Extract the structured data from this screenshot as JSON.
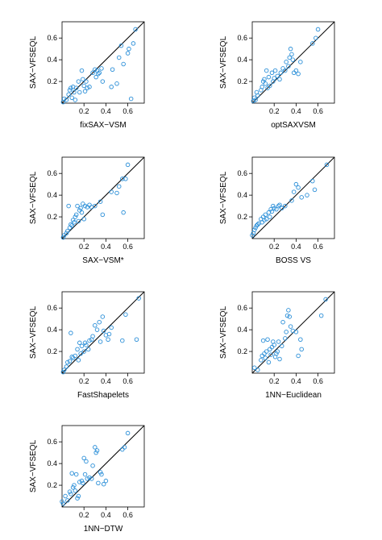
{
  "chart_data": [
    {
      "type": "scatter",
      "xlabel": "fixSAX−VSM",
      "ylabel": "SAX−VFSEQL",
      "xlim": [
        0,
        0.75
      ],
      "ylim": [
        0,
        0.75
      ],
      "xticks": [
        "0.2",
        "0.4",
        "0.6"
      ],
      "yticks": [
        "0.2",
        "0.4",
        "0.6"
      ],
      "reference_line": "y=x",
      "points": [
        [
          0.01,
          0.01
        ],
        [
          0.02,
          0.04
        ],
        [
          0.04,
          0.03
        ],
        [
          0.06,
          0.08
        ],
        [
          0.07,
          0.12
        ],
        [
          0.08,
          0.14
        ],
        [
          0.09,
          0.05
        ],
        [
          0.1,
          0.15
        ],
        [
          0.11,
          0.1
        ],
        [
          0.12,
          0.03
        ],
        [
          0.13,
          0.14
        ],
        [
          0.15,
          0.2
        ],
        [
          0.16,
          0.1
        ],
        [
          0.18,
          0.3
        ],
        [
          0.19,
          0.22
        ],
        [
          0.2,
          0.16
        ],
        [
          0.21,
          0.11
        ],
        [
          0.22,
          0.2
        ],
        [
          0.23,
          0.14
        ],
        [
          0.25,
          0.15
        ],
        [
          0.28,
          0.28
        ],
        [
          0.3,
          0.31
        ],
        [
          0.31,
          0.24
        ],
        [
          0.32,
          0.3
        ],
        [
          0.33,
          0.27
        ],
        [
          0.34,
          0.28
        ],
        [
          0.36,
          0.32
        ],
        [
          0.37,
          0.2
        ],
        [
          0.45,
          0.15
        ],
        [
          0.46,
          0.31
        ],
        [
          0.5,
          0.18
        ],
        [
          0.52,
          0.42
        ],
        [
          0.54,
          0.53
        ],
        [
          0.56,
          0.36
        ],
        [
          0.6,
          0.46
        ],
        [
          0.61,
          0.5
        ],
        [
          0.63,
          0.04
        ],
        [
          0.65,
          0.55
        ],
        [
          0.67,
          0.68
        ]
      ]
    },
    {
      "type": "scatter",
      "xlabel": "optSAXVSM",
      "ylabel": "SAX−VFSEQL",
      "xlim": [
        0,
        0.75
      ],
      "ylim": [
        0,
        0.75
      ],
      "xticks": [
        "0.2",
        "0.4",
        "0.6"
      ],
      "yticks": [
        "0.2",
        "0.4",
        "0.6"
      ],
      "reference_line": "y=x",
      "points": [
        [
          0.01,
          0.02
        ],
        [
          0.02,
          0.05
        ],
        [
          0.03,
          0.03
        ],
        [
          0.04,
          0.1
        ],
        [
          0.05,
          0.07
        ],
        [
          0.08,
          0.12
        ],
        [
          0.09,
          0.15
        ],
        [
          0.1,
          0.2
        ],
        [
          0.11,
          0.22
        ],
        [
          0.12,
          0.18
        ],
        [
          0.13,
          0.3
        ],
        [
          0.14,
          0.14
        ],
        [
          0.15,
          0.24
        ],
        [
          0.16,
          0.16
        ],
        [
          0.18,
          0.28
        ],
        [
          0.19,
          0.2
        ],
        [
          0.2,
          0.23
        ],
        [
          0.21,
          0.3
        ],
        [
          0.23,
          0.25
        ],
        [
          0.25,
          0.22
        ],
        [
          0.26,
          0.28
        ],
        [
          0.28,
          0.32
        ],
        [
          0.3,
          0.3
        ],
        [
          0.31,
          0.38
        ],
        [
          0.33,
          0.34
        ],
        [
          0.34,
          0.42
        ],
        [
          0.35,
          0.5
        ],
        [
          0.36,
          0.45
        ],
        [
          0.37,
          0.4
        ],
        [
          0.38,
          0.28
        ],
        [
          0.4,
          0.3
        ],
        [
          0.42,
          0.27
        ],
        [
          0.44,
          0.38
        ],
        [
          0.55,
          0.55
        ],
        [
          0.58,
          0.6
        ],
        [
          0.6,
          0.68
        ]
      ]
    },
    {
      "type": "scatter",
      "xlabel": "SAX−VSM*",
      "ylabel": "SAX−VFSEQL",
      "xlim": [
        0,
        0.75
      ],
      "ylim": [
        0,
        0.75
      ],
      "xticks": [
        "0.2",
        "0.4",
        "0.6"
      ],
      "yticks": [
        "0.2",
        "0.4",
        "0.6"
      ],
      "reference_line": "y=x",
      "points": [
        [
          0.01,
          0.01
        ],
        [
          0.02,
          0.03
        ],
        [
          0.04,
          0.05
        ],
        [
          0.05,
          0.07
        ],
        [
          0.06,
          0.3
        ],
        [
          0.07,
          0.1
        ],
        [
          0.08,
          0.13
        ],
        [
          0.09,
          0.12
        ],
        [
          0.1,
          0.17
        ],
        [
          0.11,
          0.15
        ],
        [
          0.12,
          0.2
        ],
        [
          0.13,
          0.22
        ],
        [
          0.14,
          0.3
        ],
        [
          0.15,
          0.16
        ],
        [
          0.16,
          0.26
        ],
        [
          0.17,
          0.28
        ],
        [
          0.18,
          0.24
        ],
        [
          0.19,
          0.32
        ],
        [
          0.2,
          0.18
        ],
        [
          0.21,
          0.3
        ],
        [
          0.23,
          0.29
        ],
        [
          0.25,
          0.31
        ],
        [
          0.27,
          0.29
        ],
        [
          0.3,
          0.3
        ],
        [
          0.35,
          0.34
        ],
        [
          0.37,
          0.22
        ],
        [
          0.45,
          0.43
        ],
        [
          0.5,
          0.42
        ],
        [
          0.52,
          0.48
        ],
        [
          0.55,
          0.55
        ],
        [
          0.56,
          0.24
        ],
        [
          0.58,
          0.55
        ],
        [
          0.6,
          0.68
        ]
      ]
    },
    {
      "type": "scatter",
      "xlabel": "BOSS VS",
      "ylabel": "SAX−VFSEQL",
      "xlim": [
        0,
        0.75
      ],
      "ylim": [
        0,
        0.75
      ],
      "xticks": [
        "0.2",
        "0.4",
        "0.6"
      ],
      "yticks": [
        "0.2",
        "0.4",
        "0.6"
      ],
      "reference_line": "y=x",
      "points": [
        [
          0.0,
          0.03
        ],
        [
          0.01,
          0.05
        ],
        [
          0.02,
          0.08
        ],
        [
          0.03,
          0.1
        ],
        [
          0.04,
          0.12
        ],
        [
          0.05,
          0.13
        ],
        [
          0.06,
          0.14
        ],
        [
          0.08,
          0.18
        ],
        [
          0.09,
          0.15
        ],
        [
          0.1,
          0.2
        ],
        [
          0.11,
          0.17
        ],
        [
          0.12,
          0.22
        ],
        [
          0.13,
          0.18
        ],
        [
          0.15,
          0.24
        ],
        [
          0.16,
          0.2
        ],
        [
          0.17,
          0.27
        ],
        [
          0.18,
          0.25
        ],
        [
          0.19,
          0.3
        ],
        [
          0.2,
          0.28
        ],
        [
          0.22,
          0.27
        ],
        [
          0.24,
          0.3
        ],
        [
          0.25,
          0.31
        ],
        [
          0.27,
          0.28
        ],
        [
          0.3,
          0.3
        ],
        [
          0.36,
          0.35
        ],
        [
          0.38,
          0.43
        ],
        [
          0.4,
          0.5
        ],
        [
          0.42,
          0.47
        ],
        [
          0.45,
          0.38
        ],
        [
          0.5,
          0.4
        ],
        [
          0.55,
          0.53
        ],
        [
          0.57,
          0.45
        ],
        [
          0.68,
          0.68
        ]
      ]
    },
    {
      "type": "scatter",
      "xlabel": "FastShapelets",
      "ylabel": "SAX−VFSEQL",
      "xlim": [
        0,
        0.75
      ],
      "ylim": [
        0,
        0.75
      ],
      "xticks": [
        "0.2",
        "0.4",
        "0.6"
      ],
      "yticks": [
        "0.2",
        "0.4",
        "0.6"
      ],
      "reference_line": "y=x",
      "points": [
        [
          0.01,
          0.01
        ],
        [
          0.02,
          0.03
        ],
        [
          0.04,
          0.06
        ],
        [
          0.05,
          0.1
        ],
        [
          0.07,
          0.11
        ],
        [
          0.08,
          0.37
        ],
        [
          0.09,
          0.15
        ],
        [
          0.1,
          0.14
        ],
        [
          0.12,
          0.16
        ],
        [
          0.14,
          0.22
        ],
        [
          0.15,
          0.12
        ],
        [
          0.16,
          0.28
        ],
        [
          0.17,
          0.18
        ],
        [
          0.18,
          0.25
        ],
        [
          0.2,
          0.2
        ],
        [
          0.21,
          0.28
        ],
        [
          0.22,
          0.26
        ],
        [
          0.24,
          0.22
        ],
        [
          0.25,
          0.3
        ],
        [
          0.27,
          0.31
        ],
        [
          0.28,
          0.34
        ],
        [
          0.3,
          0.44
        ],
        [
          0.32,
          0.4
        ],
        [
          0.34,
          0.47
        ],
        [
          0.35,
          0.29
        ],
        [
          0.37,
          0.52
        ],
        [
          0.38,
          0.39
        ],
        [
          0.4,
          0.35
        ],
        [
          0.42,
          0.31
        ],
        [
          0.43,
          0.36
        ],
        [
          0.45,
          0.42
        ],
        [
          0.55,
          0.3
        ],
        [
          0.58,
          0.54
        ],
        [
          0.68,
          0.31
        ],
        [
          0.7,
          0.69
        ]
      ]
    },
    {
      "type": "scatter",
      "xlabel": "1NN−Euclidean",
      "ylabel": "SAX−VFSEQL",
      "xlim": [
        0,
        0.75
      ],
      "ylim": [
        0,
        0.75
      ],
      "xticks": [
        "0.2",
        "0.4",
        "0.6"
      ],
      "yticks": [
        "0.2",
        "0.4",
        "0.6"
      ],
      "reference_line": "y=x",
      "points": [
        [
          0.02,
          0.05
        ],
        [
          0.05,
          0.03
        ],
        [
          0.08,
          0.12
        ],
        [
          0.09,
          0.16
        ],
        [
          0.1,
          0.3
        ],
        [
          0.11,
          0.18
        ],
        [
          0.12,
          0.14
        ],
        [
          0.13,
          0.2
        ],
        [
          0.14,
          0.31
        ],
        [
          0.15,
          0.1
        ],
        [
          0.16,
          0.22
        ],
        [
          0.17,
          0.17
        ],
        [
          0.18,
          0.24
        ],
        [
          0.19,
          0.29
        ],
        [
          0.2,
          0.26
        ],
        [
          0.21,
          0.15
        ],
        [
          0.22,
          0.18
        ],
        [
          0.23,
          0.2
        ],
        [
          0.24,
          0.29
        ],
        [
          0.25,
          0.13
        ],
        [
          0.27,
          0.25
        ],
        [
          0.28,
          0.47
        ],
        [
          0.3,
          0.32
        ],
        [
          0.31,
          0.38
        ],
        [
          0.32,
          0.53
        ],
        [
          0.33,
          0.58
        ],
        [
          0.34,
          0.52
        ],
        [
          0.35,
          0.43
        ],
        [
          0.37,
          0.39
        ],
        [
          0.4,
          0.38
        ],
        [
          0.42,
          0.16
        ],
        [
          0.44,
          0.31
        ],
        [
          0.45,
          0.22
        ],
        [
          0.63,
          0.53
        ],
        [
          0.67,
          0.68
        ]
      ]
    },
    {
      "type": "scatter",
      "xlabel": "1NN−DTW",
      "ylabel": "SAX−VFSEQL",
      "xlim": [
        0,
        0.75
      ],
      "ylim": [
        0,
        0.75
      ],
      "xticks": [
        "0.2",
        "0.4",
        "0.6"
      ],
      "yticks": [
        "0.2",
        "0.4",
        "0.6"
      ],
      "reference_line": "y=x",
      "points": [
        [
          0.0,
          0.05
        ],
        [
          0.01,
          0.03
        ],
        [
          0.03,
          0.1
        ],
        [
          0.05,
          0.06
        ],
        [
          0.07,
          0.14
        ],
        [
          0.08,
          0.12
        ],
        [
          0.09,
          0.31
        ],
        [
          0.1,
          0.18
        ],
        [
          0.11,
          0.2
        ],
        [
          0.12,
          0.15
        ],
        [
          0.13,
          0.3
        ],
        [
          0.14,
          0.08
        ],
        [
          0.15,
          0.1
        ],
        [
          0.16,
          0.23
        ],
        [
          0.18,
          0.24
        ],
        [
          0.19,
          0.22
        ],
        [
          0.2,
          0.45
        ],
        [
          0.21,
          0.3
        ],
        [
          0.22,
          0.42
        ],
        [
          0.23,
          0.26
        ],
        [
          0.25,
          0.27
        ],
        [
          0.27,
          0.26
        ],
        [
          0.28,
          0.38
        ],
        [
          0.3,
          0.55
        ],
        [
          0.31,
          0.5
        ],
        [
          0.32,
          0.52
        ],
        [
          0.33,
          0.22
        ],
        [
          0.35,
          0.32
        ],
        [
          0.36,
          0.3
        ],
        [
          0.38,
          0.21
        ],
        [
          0.4,
          0.24
        ],
        [
          0.55,
          0.53
        ],
        [
          0.57,
          0.55
        ],
        [
          0.6,
          0.68
        ]
      ]
    }
  ],
  "colors": {
    "point": "#2b8fd8",
    "axis": "#000000",
    "reference_line": "#000000"
  }
}
